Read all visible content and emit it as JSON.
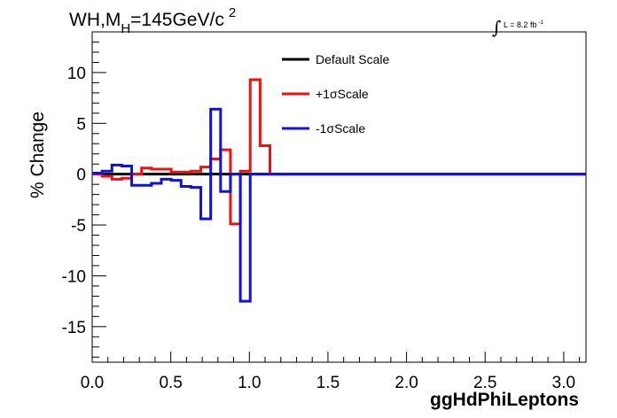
{
  "title": {
    "main": "WH,M",
    "sub": "H",
    "rest": "=145GeV/c",
    "sup": "2"
  },
  "luminosity": {
    "symbol": "∫",
    "text": "L = 8.2 fb",
    "sup": "-1"
  },
  "chart_data": {
    "type": "line",
    "xlabel": "ggHdPhiLeptons",
    "ylabel": "% Change",
    "xlim": [
      0,
      3.1416
    ],
    "ylim": [
      -18.5,
      14
    ],
    "x_ticks": [
      0.0,
      0.5,
      1.0,
      1.5,
      2.0,
      2.5,
      3.0
    ],
    "x_tick_labels": [
      "0.0",
      "0.5",
      "1.0",
      "1.5",
      "2.0",
      "2.5",
      "3.0"
    ],
    "y_ticks": [
      -15,
      -10,
      -5,
      0,
      5,
      10
    ],
    "y_tick_labels": [
      "-15",
      "-10",
      "-5",
      "0",
      "5",
      "10"
    ],
    "legend_position": "top-center",
    "bin_edges": [
      0,
      0.0628,
      0.1257,
      0.1885,
      0.2513,
      0.3142,
      0.377,
      0.4398,
      0.5027,
      0.5655,
      0.6283,
      0.6912,
      0.754,
      0.8168,
      0.8796,
      0.9425,
      1.0053,
      1.0681,
      1.131,
      1.1938,
      1.2566,
      3.1416
    ],
    "series": [
      {
        "name": "Default Scale",
        "color": "#000000",
        "values": [
          0,
          0,
          0,
          0,
          0,
          0,
          0,
          0,
          0,
          0,
          0,
          0,
          0,
          0,
          0,
          0,
          0,
          0,
          0,
          0,
          0
        ]
      },
      {
        "name": "+1σScale",
        "color": "#ee1111",
        "values": [
          0.0,
          -0.2,
          -0.5,
          -0.4,
          0.0,
          0.6,
          0.5,
          0.5,
          0.2,
          0.2,
          0.3,
          0.7,
          1.5,
          2.4,
          -4.9,
          0.3,
          9.3,
          2.8,
          0.0,
          0.0,
          0.0
        ]
      },
      {
        "name": "-1σScale",
        "color": "#1111dd",
        "values": [
          0.1,
          0.3,
          0.9,
          0.8,
          -1.1,
          -1.1,
          -0.9,
          -0.5,
          -0.6,
          -1.2,
          -1.3,
          -4.4,
          6.4,
          -1.7,
          0.0,
          -12.5,
          0.0,
          0.0,
          0.0,
          0.0,
          0.0
        ]
      }
    ]
  }
}
